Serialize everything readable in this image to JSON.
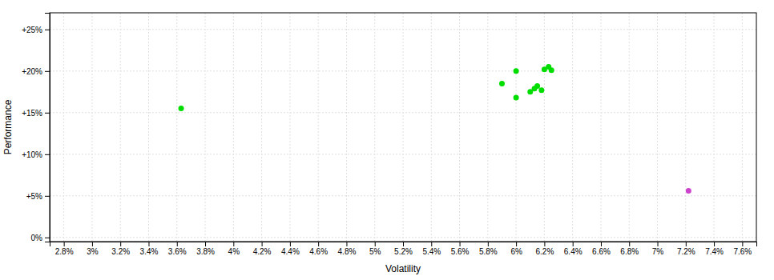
{
  "chart_data": {
    "type": "scatter",
    "xlabel": "Volatility",
    "ylabel": "Performance",
    "xlim": [
      0.027,
      0.077
    ],
    "ylim": [
      -0.005,
      0.27
    ],
    "xticks": [
      {
        "value": 0.028,
        "label": "2.8%"
      },
      {
        "value": 0.03,
        "label": "3%"
      },
      {
        "value": 0.032,
        "label": "3.2%"
      },
      {
        "value": 0.034,
        "label": "3.4%"
      },
      {
        "value": 0.036,
        "label": "3.6%"
      },
      {
        "value": 0.038,
        "label": "3.8%"
      },
      {
        "value": 0.04,
        "label": "4%"
      },
      {
        "value": 0.042,
        "label": "4.2%"
      },
      {
        "value": 0.044,
        "label": "4.4%"
      },
      {
        "value": 0.046,
        "label": "4.6%"
      },
      {
        "value": 0.048,
        "label": "4.8%"
      },
      {
        "value": 0.05,
        "label": "5%"
      },
      {
        "value": 0.052,
        "label": "5.2%"
      },
      {
        "value": 0.054,
        "label": "5.4%"
      },
      {
        "value": 0.056,
        "label": "5.6%"
      },
      {
        "value": 0.058,
        "label": "5.8%"
      },
      {
        "value": 0.06,
        "label": "6%"
      },
      {
        "value": 0.062,
        "label": "6.2%"
      },
      {
        "value": 0.064,
        "label": "6.4%"
      },
      {
        "value": 0.066,
        "label": "6.6%"
      },
      {
        "value": 0.068,
        "label": "6.8%"
      },
      {
        "value": 0.07,
        "label": "7%"
      },
      {
        "value": 0.072,
        "label": "7.2%"
      },
      {
        "value": 0.074,
        "label": "7.4%"
      },
      {
        "value": 0.076,
        "label": "7.6%"
      }
    ],
    "yticks": [
      {
        "value": 0.0,
        "label": "0%"
      },
      {
        "value": 0.05,
        "label": "+5%"
      },
      {
        "value": 0.1,
        "label": "+10%"
      },
      {
        "value": 0.15,
        "label": "+15%"
      },
      {
        "value": 0.2,
        "label": "+20%"
      },
      {
        "value": 0.25,
        "label": "+25%"
      }
    ],
    "grid": true,
    "series": [
      {
        "color": "#00dd00",
        "x": [
          0.0363,
          0.059,
          0.06,
          0.06,
          0.061,
          0.0613,
          0.0615,
          0.0618,
          0.062,
          0.0623,
          0.0625
        ],
        "values": [
          0.155,
          0.185,
          0.168,
          0.2,
          0.175,
          0.179,
          0.182,
          0.177,
          0.202,
          0.205,
          0.201
        ]
      },
      {
        "color": "#cc44cc",
        "x": [
          0.0722
        ],
        "values": [
          0.056
        ]
      }
    ]
  }
}
